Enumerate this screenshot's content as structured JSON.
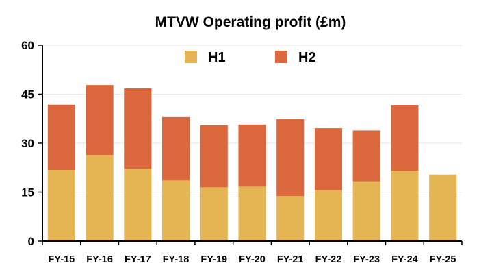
{
  "chart_data": {
    "type": "bar",
    "stacked": true,
    "title": "MTVW Operating profit (£m)",
    "xlabel": "",
    "ylabel": "",
    "ylim": [
      0,
      60
    ],
    "yticks": [
      "0",
      "15",
      "30",
      "45",
      "60"
    ],
    "grid": true,
    "legend_position": "top-center",
    "categories": [
      "FY-15",
      "FY-16",
      "FY-17",
      "FY-18",
      "FY-19",
      "FY-20",
      "FY-21",
      "FY-22",
      "FY-23",
      "FY-24",
      "FY-25"
    ],
    "series": [
      {
        "name": "H1",
        "color": "#E5B554",
        "values": [
          21.8,
          26.3,
          22.2,
          18.6,
          16.5,
          16.7,
          13.8,
          15.6,
          18.3,
          21.6,
          20.4
        ]
      },
      {
        "name": "H2",
        "color": "#DB683C",
        "values": [
          20.0,
          21.5,
          24.6,
          19.4,
          19.0,
          19.0,
          23.6,
          19.0,
          15.6,
          20.0,
          null
        ]
      }
    ]
  }
}
